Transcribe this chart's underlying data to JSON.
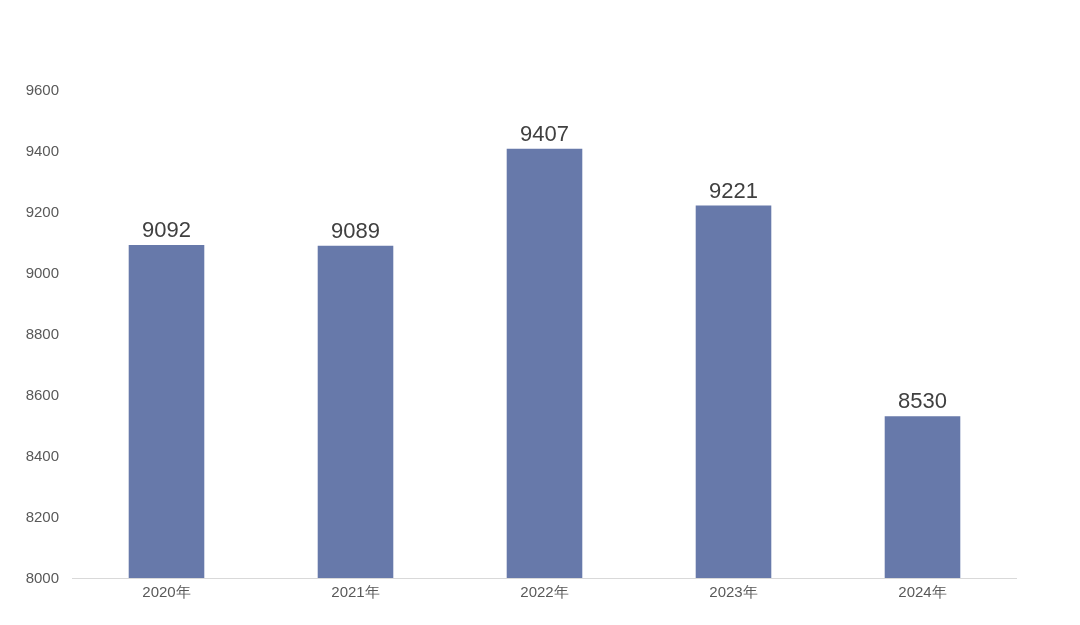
{
  "chart_data": {
    "type": "bar",
    "categories": [
      "2020年",
      "2021年",
      "2022年",
      "2023年",
      "2024年"
    ],
    "values": [
      9092,
      9089,
      9407,
      9221,
      8530
    ],
    "color": "#6779aa",
    "ylim": [
      8000,
      9600
    ],
    "yticks": [
      8000,
      8200,
      8400,
      8600,
      8800,
      9000,
      9200,
      9400,
      9600
    ],
    "grid": false,
    "data_labels": true
  }
}
